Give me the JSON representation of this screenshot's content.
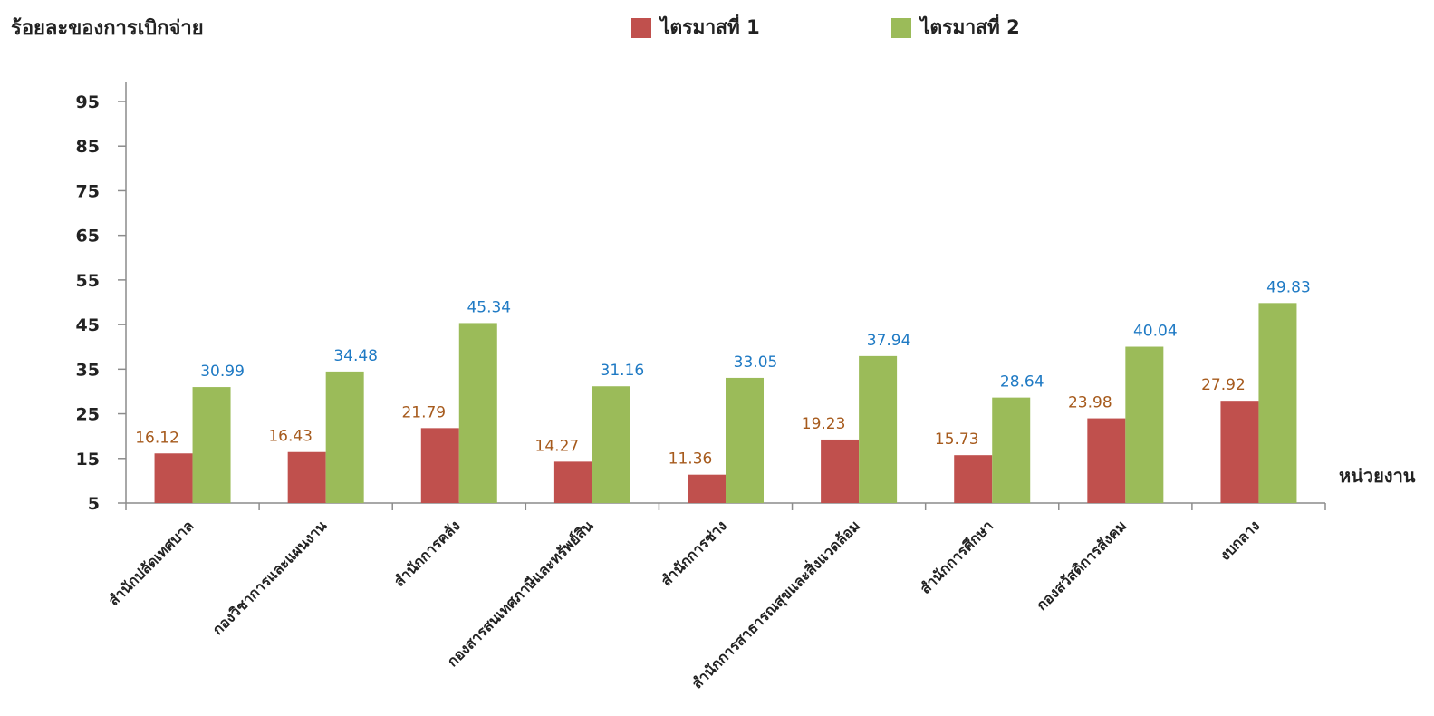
{
  "chart_data": {
    "type": "bar",
    "ylabel": "ร้อยละของการเบิกจ่าย",
    "xlabel": "หน่วยงาน",
    "ylim": [
      5,
      95
    ],
    "yticks": [
      5,
      15,
      25,
      35,
      45,
      55,
      65,
      75,
      85,
      95
    ],
    "grid": false,
    "legend_position": "top",
    "categories": [
      "สำนักปลัดเทศบาล",
      "กองวิชาการและแผนงาน",
      "สำนักการคลัง",
      "กองสารสนเทศภาษีและทรัพย์สิน",
      "สำนักการช่าง",
      "สำนักการสาธารณสุขและสิ่งแวดล้อม",
      "สำนักการศึกษา",
      "กองสวัสดิการสังคม",
      "งบกลาง"
    ],
    "series": [
      {
        "name": "ไตรมาสที่ 1",
        "color": "#c0504d",
        "label_color": "#a65a1c",
        "values": [
          16.12,
          16.43,
          21.79,
          14.27,
          11.36,
          19.23,
          15.73,
          23.98,
          27.92
        ]
      },
      {
        "name": "ไตรมาสที่ 2",
        "color": "#9bbb59",
        "label_color": "#1f7ac4",
        "values": [
          30.99,
          34.48,
          45.34,
          31.16,
          33.05,
          37.94,
          28.64,
          40.04,
          49.83
        ]
      }
    ]
  }
}
